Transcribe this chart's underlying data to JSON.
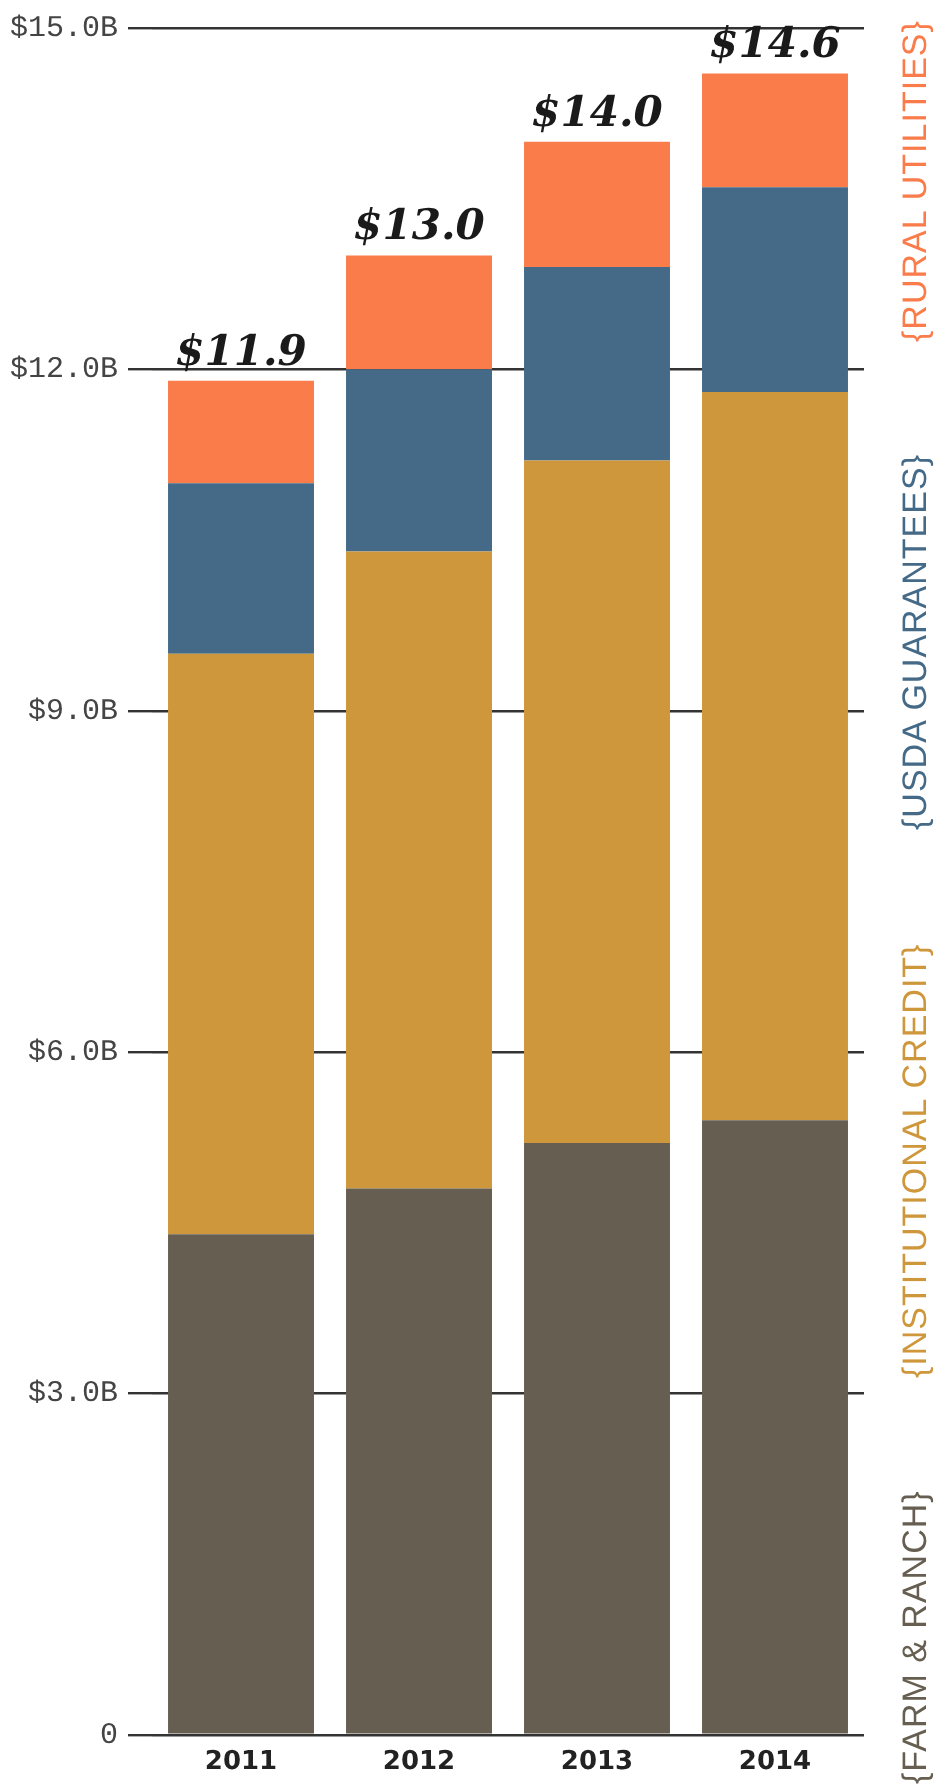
{
  "chart_data": {
    "type": "bar",
    "stacked": true,
    "categories": [
      "2011",
      "2012",
      "2013",
      "2014"
    ],
    "series": [
      {
        "name": "{FARM & RANCH}",
        "color": "#665e50",
        "values": [
          4.4,
          4.8,
          5.2,
          5.4
        ]
      },
      {
        "name": "{INSTITUTIONAL CREDIT}",
        "color": "#cf973b",
        "values": [
          5.1,
          5.6,
          6.0,
          6.4
        ]
      },
      {
        "name": "{USDA GUARANTEES}",
        "color": "#446a88",
        "values": [
          1.5,
          1.6,
          1.7,
          1.8
        ]
      },
      {
        "name": "{RURAL UTILITIES}",
        "color": "#fa7c4b",
        "values": [
          0.9,
          1.0,
          1.1,
          1.0
        ]
      }
    ],
    "totals": [
      "$11.9",
      "$13.0",
      "$14.0",
      "$14.6"
    ],
    "ylim": [
      0,
      15
    ],
    "yticks": [
      0,
      {
        "value": 3,
        "label": "$3.0B"
      },
      {
        "value": 6,
        "label": "$6.0B"
      },
      {
        "value": 9,
        "label": "$9.0B"
      },
      {
        "value": 12,
        "label": "$12.0B"
      },
      {
        "value": 15,
        "label": "$15.0B"
      }
    ],
    "grid": "y",
    "legend": "right"
  }
}
